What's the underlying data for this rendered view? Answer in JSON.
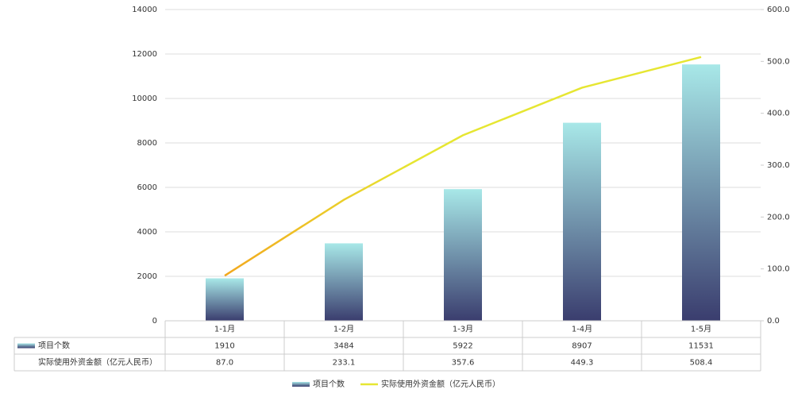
{
  "chart_data": {
    "type": "bar-line",
    "categories": [
      "1-1月",
      "1-2月",
      "1-3月",
      "1-4月",
      "1-5月"
    ],
    "series": [
      {
        "name": "项目个数",
        "type": "bar",
        "color": "#3a3d6e",
        "gradient_top": "#a8e8e8",
        "values": [
          1910,
          3484,
          5922,
          8907,
          11531
        ]
      },
      {
        "name": "实际使用外资金额（亿元人民币）",
        "type": "line",
        "axis": "y2",
        "color": "#e6e632",
        "gradient_start": "#f2a81e",
        "values": [
          87.0,
          233.1,
          357.6,
          449.3,
          508.4
        ],
        "value_labels": [
          "87.0",
          "233.1",
          "357.6",
          "449.3",
          "508.4"
        ]
      }
    ],
    "ylim": [
      0,
      14000
    ],
    "yticks": [
      0,
      2000,
      4000,
      6000,
      8000,
      10000,
      12000,
      14000
    ],
    "y2lim": [
      0,
      600
    ],
    "y2ticks": [
      {
        "value": 0,
        "label": "0.0"
      },
      {
        "value": 100,
        "label": "100.0"
      },
      {
        "value": 200,
        "label": "200.0"
      },
      {
        "value": 300,
        "label": "300.0"
      },
      {
        "value": 400,
        "label": "400.0"
      },
      {
        "value": 500,
        "label": "500.0"
      },
      {
        "value": 600,
        "label": "600.0"
      }
    ],
    "grid": true,
    "data_table": true,
    "legend": "bottom"
  }
}
